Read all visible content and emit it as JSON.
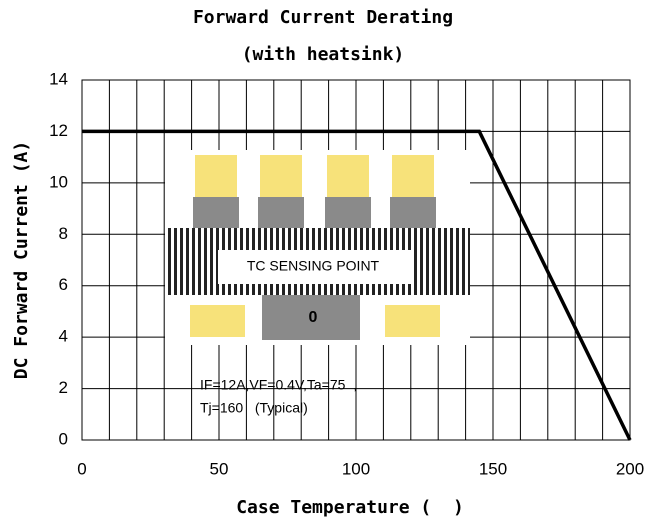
{
  "chart_data": {
    "type": "line",
    "title": "Forward Current Derating",
    "subtitle": "(with heatsink)",
    "x_label": "Case Temperature (  )",
    "y_label": "DC Forward Current (A)",
    "x": [
      0,
      145,
      200
    ],
    "values": [
      12,
      12,
      0
    ],
    "color": "#000000",
    "xlim": [
      0,
      200
    ],
    "xticks": [
      0,
      50,
      100,
      150,
      200
    ],
    "xgrid": [
      0,
      10,
      20,
      30,
      40,
      50,
      60,
      70,
      80,
      90,
      100,
      110,
      120,
      130,
      140,
      150,
      160,
      170,
      180,
      190,
      200
    ],
    "ylim": [
      0,
      14
    ],
    "yticks": [
      0,
      2,
      4,
      6,
      8,
      10,
      12,
      14
    ],
    "grid": true,
    "annotations": [
      "TC SENSING POINT",
      "0",
      "IF=12A,VF=0.4V,Ta=75  ,",
      "Tj=160   (Typical)"
    ]
  }
}
